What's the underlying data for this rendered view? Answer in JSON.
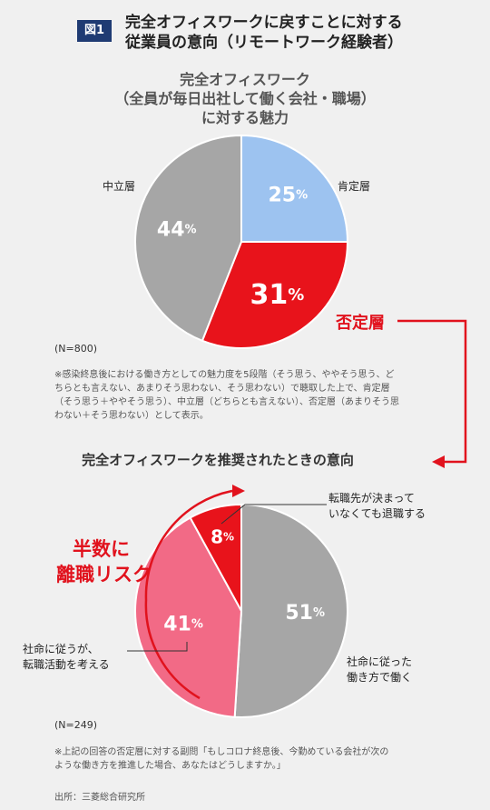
{
  "figure_label": "図1",
  "title_line1": "完全オフィスワークに戻すことに対する",
  "title_line2": "従業員の意向（リモートワーク経験者）",
  "chart_data": [
    {
      "type": "pie",
      "title_line1": "完全オフィスワーク",
      "title_line2": "（全員が毎日出社して働く会社・職場）",
      "title_line3": "に対する魅力",
      "slices": [
        {
          "label": "肯定層",
          "value": 25,
          "display": "25",
          "color": "#9dc3f0"
        },
        {
          "label": "否定層",
          "value": 31,
          "display": "31",
          "color": "#e8131b"
        },
        {
          "label": "中立層",
          "value": 44,
          "display": "44",
          "color": "#a6a6a6"
        }
      ],
      "n": "(N=800)"
    },
    {
      "type": "pie",
      "title": "完全オフィスワークを推奨されたときの意向",
      "slices": [
        {
          "label": "社命に従った 働き方で働く",
          "value": 51,
          "display": "51",
          "color": "#a6a6a6"
        },
        {
          "label": "社命に従うが、 転職活動を考える",
          "value": 41,
          "display": "41",
          "color": "#f26a86"
        },
        {
          "label": "転職先が決まって いなくても退職する",
          "value": 8,
          "display": "8",
          "color": "#e8131b"
        }
      ],
      "n": "(N=249)"
    }
  ],
  "percent_sign": "%",
  "label_positive": "肯定層",
  "label_neutral": "中立層",
  "label_negative_callout": "否定層",
  "label_resign_1": "転職先が決まって",
  "label_resign_2": "いなくても退職する",
  "label_follow_1": "社命に従った",
  "label_follow_2": "働き方で働く",
  "label_jobhunt_1": "社命に従うが、",
  "label_jobhunt_2": "転職活動を考える",
  "risk_line1": "半数に",
  "risk_line2": "離職リスク",
  "note1_line1": "※感染終息後における働き方としての魅力度を5段階（そう思う、ややそう思う、ど",
  "note1_line2": "ちらとも言えない、あまりそう思わない、そう思わない）で聴取した上で、肯定層",
  "note1_line3": "（そう思う＋ややそう思う）、中立層（どちらとも言えない）、否定層（あまりそう思",
  "note1_line4": "わない＋そう思わない）として表示。",
  "note2_line1": "※上記の回答の否定層に対する副問「もしコロナ終息後、今勤めている会社が次の",
  "note2_line2": "ような働き方を推進した場合、あなたはどうしますか。」",
  "source": "出所：三菱総合研究所",
  "colors": {
    "accent_red": "#e1121d",
    "navy": "#1f3b73"
  }
}
